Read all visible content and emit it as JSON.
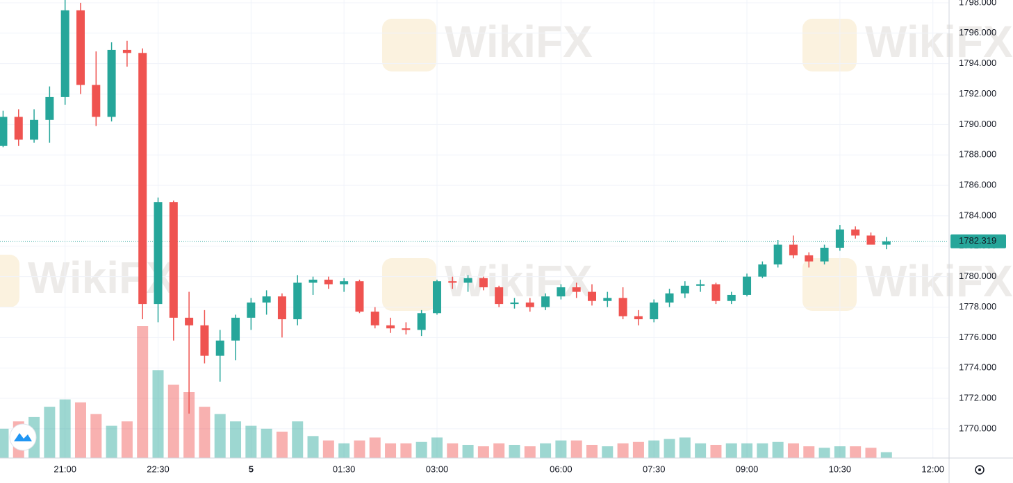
{
  "chart_data": {
    "type": "candlestick",
    "watermark": "WikiFX",
    "open": [
      1788.6,
      1790.5,
      1789,
      1790.3,
      1791.8,
      1797.5,
      1792.6,
      1790.5,
      1794.9,
      1794.7,
      1778.2,
      1784.9,
      1777.3,
      1776.8,
      1774.8,
      1775.8,
      1777.3,
      1778.3,
      1778.7,
      1777.2,
      1779.6,
      1779.8,
      1779.5,
      1779.7,
      1777.7,
      1776.8,
      1776.6,
      1776.5,
      1777.6,
      1779.7,
      1779.6,
      1779.9,
      1779.3,
      1778.2,
      1778.3,
      1778,
      1778.7,
      1779.3,
      1779,
      1778.4,
      1778.6,
      1777.4,
      1777.2,
      1778.3,
      1778.9,
      1779.4,
      1779.5,
      1778.4,
      1778.8,
      1780,
      1780.8,
      1782.1,
      1781.4,
      1781,
      1781.9,
      1783.1,
      1782.7,
      1782.1
    ],
    "high": [
      1790.9,
      1791,
      1791,
      1792.5,
      1798.2,
      1798,
      1794.8,
      1795.4,
      1795.5,
      1795,
      1785.2,
      1785,
      1779,
      1777.8,
      1776.5,
      1777.5,
      1778.6,
      1779.1,
      1778.9,
      1780.1,
      1780,
      1780,
      1779.9,
      1779.8,
      1778,
      1777.3,
      1777,
      1777.8,
      1779.8,
      1780,
      1780.1,
      1780,
      1779.4,
      1778.6,
      1778.6,
      1778.9,
      1779.5,
      1779.6,
      1779.5,
      1779,
      1779.3,
      1777.8,
      1778.5,
      1779.2,
      1779.7,
      1779.8,
      1779.6,
      1779,
      1780.2,
      1781,
      1782.4,
      1782.7,
      1781.6,
      1782.1,
      1783.4,
      1783.3,
      1782.9,
      1782.6
    ],
    "low": [
      1788.5,
      1788.6,
      1788.8,
      1788.8,
      1791.3,
      1792,
      1789.9,
      1790.2,
      1793.8,
      1777.2,
      1777,
      1775.8,
      1771,
      1774.3,
      1773.1,
      1774.5,
      1776.5,
      1777.5,
      1776,
      1776.8,
      1778.8,
      1779.2,
      1779,
      1777.6,
      1776.6,
      1776.3,
      1776.2,
      1776.1,
      1777.5,
      1779.2,
      1779,
      1779.1,
      1778,
      1777.9,
      1777.7,
      1777.8,
      1778.5,
      1778.6,
      1778.1,
      1778,
      1777.2,
      1776.8,
      1777,
      1778,
      1778.6,
      1779,
      1778.2,
      1778.2,
      1778.7,
      1779.9,
      1780.6,
      1781.2,
      1780.6,
      1780.8,
      1781.7,
      1782.5,
      1782.3,
      1781.8
    ],
    "close": [
      1790.5,
      1789,
      1790.3,
      1791.8,
      1797.5,
      1792.6,
      1790.5,
      1794.9,
      1794.7,
      1778.2,
      1784.9,
      1777.3,
      1776.8,
      1774.8,
      1775.8,
      1777.3,
      1778.3,
      1778.7,
      1777.2,
      1779.6,
      1779.8,
      1779.5,
      1779.7,
      1777.7,
      1776.8,
      1776.6,
      1776.5,
      1777.6,
      1779.7,
      1779.6,
      1779.9,
      1779.3,
      1778.2,
      1778.3,
      1778,
      1778.7,
      1779.3,
      1779,
      1778.4,
      1778.6,
      1777.4,
      1777.2,
      1778.3,
      1778.9,
      1779.4,
      1779.5,
      1778.4,
      1778.8,
      1780,
      1780.8,
      1782.1,
      1781.4,
      1781,
      1781.9,
      1783.1,
      1782.7,
      1782.1,
      1782.319
    ],
    "volume": [
      20,
      25,
      28,
      35,
      40,
      38,
      30,
      22,
      25,
      90,
      60,
      50,
      45,
      35,
      30,
      25,
      22,
      20,
      18,
      25,
      15,
      12,
      10,
      12,
      14,
      10,
      10,
      11,
      14,
      10,
      9,
      8,
      10,
      9,
      8,
      10,
      12,
      12,
      9,
      8,
      10,
      11,
      12,
      13,
      14,
      10,
      9,
      10,
      10,
      10,
      11,
      10,
      8,
      7,
      8,
      8,
      7,
      4
    ],
    "up_color": "#26a69a",
    "down_color": "#ef5350",
    "xlim": [
      -0.2,
      61
    ],
    "xticks": [
      {
        "value": 4,
        "label": "21:00"
      },
      {
        "value": 10,
        "label": "22:30"
      },
      {
        "value": 16,
        "label": "5"
      },
      {
        "value": 22,
        "label": "01:30"
      },
      {
        "value": 28,
        "label": "03:00"
      },
      {
        "value": 36,
        "label": "06:00"
      },
      {
        "value": 42,
        "label": "07:30"
      },
      {
        "value": 48,
        "label": "09:00"
      },
      {
        "value": 54,
        "label": "10:30"
      },
      {
        "value": 60,
        "label": "12:00"
      }
    ],
    "ylim": [
      1768.08,
      1798.18
    ],
    "yticks": [
      {
        "value": 1770,
        "label": "1770.000"
      },
      {
        "value": 1772,
        "label": "1772.000"
      },
      {
        "value": 1774,
        "label": "1774.000"
      },
      {
        "value": 1776,
        "label": "1776.000"
      },
      {
        "value": 1778,
        "label": "1778.000"
      },
      {
        "value": 1780,
        "label": "1780.000"
      },
      {
        "value": 1782,
        "label": "1782.000"
      },
      {
        "value": 1784,
        "label": "1784.000"
      },
      {
        "value": 1786,
        "label": "1786.000"
      },
      {
        "value": 1788,
        "label": "1788.000"
      },
      {
        "value": 1790,
        "label": "1790.000"
      },
      {
        "value": 1792,
        "label": "1792.000"
      },
      {
        "value": 1794,
        "label": "1794.000"
      },
      {
        "value": 1796,
        "label": "1796.000"
      },
      {
        "value": 1798,
        "label": "1798.000"
      }
    ],
    "last_price": 1782.319,
    "grid": true
  }
}
